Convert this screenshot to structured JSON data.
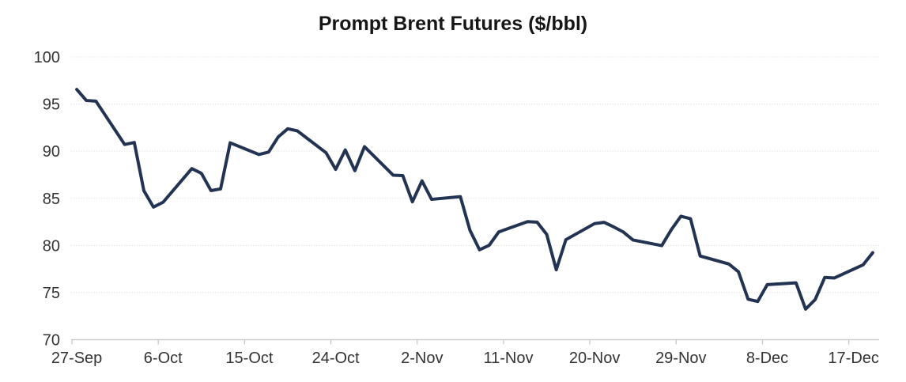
{
  "title": "Prompt Brent Futures ($/bbl)",
  "chart_data": {
    "type": "line",
    "title": "Prompt Brent Futures ($/bbl)",
    "xlabel": "",
    "ylabel": "",
    "ylim": [
      70,
      100
    ],
    "y_ticks": [
      70,
      75,
      80,
      85,
      90,
      95,
      100
    ],
    "x_tick_labels": [
      "27-Sep",
      "6-Oct",
      "15-Oct",
      "24-Oct",
      "2-Nov",
      "11-Nov",
      "20-Nov",
      "29-Nov",
      "8-Dec",
      "17-Dec"
    ],
    "x_tick_interval_days": 9,
    "grid": "horizontal dotted",
    "legend_position": "none",
    "colors": {
      "line": "#233352",
      "gridline": "#d9d9d9",
      "axis": "#c6c6c6",
      "tick_label_text": "#333333",
      "title_text": "#161616",
      "background": "#ffffff"
    },
    "series": [
      {
        "name": "Prompt Brent Futures",
        "points": [
          {
            "date": "27-Sep",
            "value": 96.55
          },
          {
            "date": "28-Sep",
            "value": 95.38
          },
          {
            "date": "29-Sep",
            "value": 95.31
          },
          {
            "date": "2-Oct",
            "value": 90.71
          },
          {
            "date": "3-Oct",
            "value": 90.92
          },
          {
            "date": "4-Oct",
            "value": 85.81
          },
          {
            "date": "5-Oct",
            "value": 84.07
          },
          {
            "date": "6-Oct",
            "value": 84.58
          },
          {
            "date": "9-Oct",
            "value": 88.15
          },
          {
            "date": "10-Oct",
            "value": 87.65
          },
          {
            "date": "11-Oct",
            "value": 85.82
          },
          {
            "date": "12-Oct",
            "value": 86.0
          },
          {
            "date": "13-Oct",
            "value": 90.89
          },
          {
            "date": "16-Oct",
            "value": 89.65
          },
          {
            "date": "17-Oct",
            "value": 89.9
          },
          {
            "date": "18-Oct",
            "value": 91.5
          },
          {
            "date": "19-Oct",
            "value": 92.38
          },
          {
            "date": "20-Oct",
            "value": 92.16
          },
          {
            "date": "23-Oct",
            "value": 89.83
          },
          {
            "date": "24-Oct",
            "value": 88.07
          },
          {
            "date": "25-Oct",
            "value": 90.13
          },
          {
            "date": "26-Oct",
            "value": 87.93
          },
          {
            "date": "27-Oct",
            "value": 90.48
          },
          {
            "date": "30-Oct",
            "value": 87.45
          },
          {
            "date": "31-Oct",
            "value": 87.41
          },
          {
            "date": "1-Nov",
            "value": 84.63
          },
          {
            "date": "2-Nov",
            "value": 86.85
          },
          {
            "date": "3-Nov",
            "value": 84.89
          },
          {
            "date": "6-Nov",
            "value": 85.18
          },
          {
            "date": "7-Nov",
            "value": 81.61
          },
          {
            "date": "8-Nov",
            "value": 79.54
          },
          {
            "date": "9-Nov",
            "value": 80.01
          },
          {
            "date": "10-Nov",
            "value": 81.43
          },
          {
            "date": "13-Nov",
            "value": 82.52
          },
          {
            "date": "14-Nov",
            "value": 82.47
          },
          {
            "date": "15-Nov",
            "value": 81.18
          },
          {
            "date": "16-Nov",
            "value": 77.42
          },
          {
            "date": "17-Nov",
            "value": 80.61
          },
          {
            "date": "20-Nov",
            "value": 82.32
          },
          {
            "date": "21-Nov",
            "value": 82.45
          },
          {
            "date": "22-Nov",
            "value": 81.96
          },
          {
            "date": "23-Nov",
            "value": 81.42
          },
          {
            "date": "24-Nov",
            "value": 80.58
          },
          {
            "date": "27-Nov",
            "value": 79.98
          },
          {
            "date": "28-Nov",
            "value": 81.68
          },
          {
            "date": "29-Nov",
            "value": 83.1
          },
          {
            "date": "30-Nov",
            "value": 82.83
          },
          {
            "date": "1-Dec",
            "value": 78.88
          },
          {
            "date": "4-Dec",
            "value": 78.03
          },
          {
            "date": "5-Dec",
            "value": 77.2
          },
          {
            "date": "6-Dec",
            "value": 74.3
          },
          {
            "date": "7-Dec",
            "value": 74.05
          },
          {
            "date": "8-Dec",
            "value": 75.84
          },
          {
            "date": "11-Dec",
            "value": 76.03
          },
          {
            "date": "12-Dec",
            "value": 73.24
          },
          {
            "date": "13-Dec",
            "value": 74.26
          },
          {
            "date": "14-Dec",
            "value": 76.61
          },
          {
            "date": "15-Dec",
            "value": 76.55
          },
          {
            "date": "18-Dec",
            "value": 77.95
          },
          {
            "date": "19-Dec",
            "value": 79.23
          }
        ]
      }
    ]
  }
}
